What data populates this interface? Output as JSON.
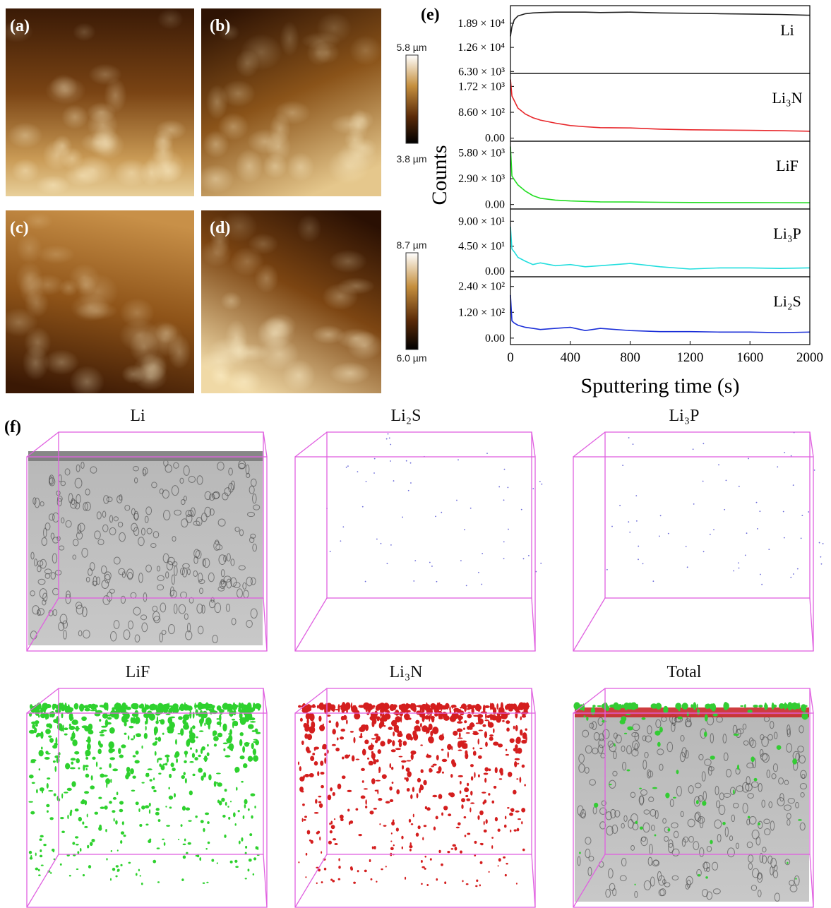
{
  "panels": {
    "a": "(a)",
    "b": "(b)",
    "c": "(c)",
    "d": "(d)",
    "e": "(e)",
    "f": "(f)"
  },
  "afm_colorbars": [
    {
      "max": "5.8 µm",
      "min": "3.8 µm"
    },
    {
      "max": "8.7 µm",
      "min": "6.0 µm"
    }
  ],
  "chart_data": [
    {
      "type": "line",
      "x": [
        0,
        10,
        25,
        50,
        100,
        150,
        200,
        300,
        400,
        500,
        600,
        800,
        1000,
        1200,
        1400,
        1600,
        1800,
        2000
      ],
      "xlim": [
        0,
        2000
      ],
      "ylim": [
        5800,
        23500
      ],
      "yticks": [
        {
          "value": 6300,
          "label": "6.30 × 10³"
        },
        {
          "value": 12600,
          "label": "1.26 × 10⁴"
        },
        {
          "value": 18900,
          "label": "1.89 × 10⁴"
        }
      ],
      "series": [
        {
          "name": "Li",
          "color": "#222222",
          "values": [
            15500,
            18000,
            19800,
            20800,
            21400,
            21600,
            21700,
            21800,
            21800,
            21800,
            21700,
            21800,
            21600,
            21500,
            21400,
            21300,
            21200,
            21000
          ]
        }
      ]
    },
    {
      "type": "line",
      "x": [
        0,
        10,
        25,
        50,
        100,
        150,
        200,
        300,
        400,
        500,
        600,
        800,
        1000,
        1200,
        1400,
        1600,
        1800,
        2000
      ],
      "xlim": [
        0,
        2000
      ],
      "ylim": [
        -100,
        2150
      ],
      "yticks": [
        {
          "value": 0,
          "label": "0.00"
        },
        {
          "value": 860,
          "label": "8.60 × 10²"
        },
        {
          "value": 1720,
          "label": "1.72 × 10³"
        }
      ],
      "series": [
        {
          "name": "Li₃N",
          "color": "#e8262a",
          "values": [
            1950,
            1400,
            1250,
            1000,
            800,
            680,
            600,
            500,
            420,
            380,
            350,
            340,
            300,
            280,
            270,
            260,
            250,
            230
          ]
        }
      ]
    },
    {
      "type": "line",
      "x": [
        0,
        10,
        25,
        50,
        100,
        150,
        200,
        300,
        400,
        500,
        600,
        800,
        1000,
        1200,
        1400,
        1600,
        1800,
        2000
      ],
      "xlim": [
        0,
        2000
      ],
      "ylim": [
        -500,
        7100
      ],
      "yticks": [
        {
          "value": 0,
          "label": "0.00"
        },
        {
          "value": 2900,
          "label": "2.90 × 10³"
        },
        {
          "value": 5800,
          "label": "5.80 × 10³"
        }
      ],
      "ylabel": "Counts",
      "series": [
        {
          "name": "LiF",
          "color": "#22dd22",
          "values": [
            6500,
            3200,
            2800,
            2200,
            1500,
            1000,
            700,
            500,
            400,
            350,
            300,
            280,
            250,
            230,
            220,
            220,
            210,
            200
          ]
        }
      ]
    },
    {
      "type": "line",
      "x": [
        0,
        10,
        25,
        50,
        100,
        150,
        200,
        300,
        400,
        500,
        600,
        800,
        1000,
        1200,
        1400,
        1600,
        1800,
        2000
      ],
      "xlim": [
        0,
        2000
      ],
      "ylim": [
        -10,
        112
      ],
      "yticks": [
        {
          "value": 0,
          "label": "0.00"
        },
        {
          "value": 45,
          "label": "4.50 × 10¹"
        },
        {
          "value": 90,
          "label": "9.00 × 10¹"
        }
      ],
      "series": [
        {
          "name": "Li₃P",
          "color": "#22dede",
          "values": [
            80,
            40,
            35,
            25,
            18,
            12,
            15,
            10,
            12,
            8,
            10,
            14,
            8,
            4,
            6,
            6,
            5,
            6
          ]
        }
      ]
    },
    {
      "type": "line",
      "x": [
        0,
        10,
        25,
        50,
        100,
        150,
        200,
        300,
        400,
        500,
        600,
        800,
        1000,
        1200,
        1400,
        1600,
        1800,
        2000
      ],
      "xlim": [
        0,
        2000
      ],
      "ylim": [
        -30,
        285
      ],
      "yticks": [
        {
          "value": 0,
          "label": "0.00"
        },
        {
          "value": 120,
          "label": "1.20 × 10²"
        },
        {
          "value": 240,
          "label": "2.40 × 10²"
        }
      ],
      "xticks": [
        0,
        400,
        800,
        1200,
        1600,
        2000
      ],
      "xlabel": "Sputtering time (s)",
      "series": [
        {
          "name": "Li₂S",
          "color": "#1b2fd8",
          "values": [
            200,
            80,
            70,
            60,
            50,
            45,
            40,
            45,
            50,
            35,
            45,
            35,
            30,
            30,
            28,
            28,
            25,
            28
          ]
        }
      ]
    }
  ],
  "reconstructions": [
    "Li",
    "Li₂S",
    "Li₃P",
    "LiF",
    "Li₃N",
    "Total"
  ]
}
